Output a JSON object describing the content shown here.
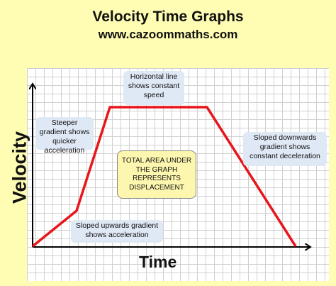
{
  "header": {
    "title": "Velocity Time Graphs",
    "subtitle": "www.cazoommaths.com"
  },
  "axes": {
    "y_label": "Velocity",
    "x_label": "Time"
  },
  "annotations": {
    "steeper": "Steeper gradient shows quicker acceleration",
    "constant": "Horizontal line shows constant speed",
    "deceleration": "Sloped downwards gradient shows constant deceleration",
    "acceleration": "Sloped upwards gradient shows acceleration",
    "area": "TOTAL AREA UNDER THE GRAPH REPRESENTS DISPLACEMENT"
  },
  "colors": {
    "background": "#fefdb3",
    "graph_line": "#e8151b",
    "note_fill": "#dfe8f5",
    "center_box_fill": "#fcf6ae"
  }
}
